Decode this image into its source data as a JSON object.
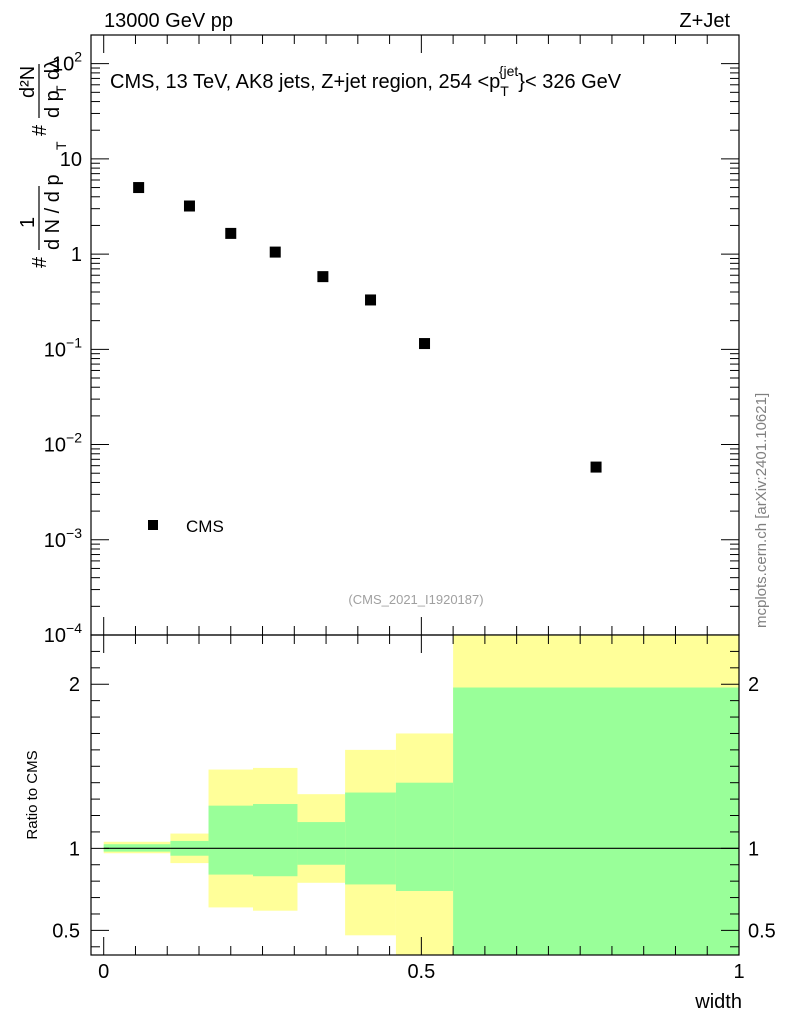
{
  "header": {
    "left_label": "13000 GeV pp",
    "right_label": "Z+Jet"
  },
  "side_label": "mcplots.cern.ch [arXiv:2401.10621]",
  "watermark": "(CMS_2021_I1920187)",
  "chart_data": [
    {
      "type": "scatter",
      "panel": "main",
      "title": "CMS, 13 TeV, AK8 jets, Z+jet region, 254 <p_T^{jet}< 326 GeV",
      "title_parts": {
        "prefix": "CMS, 13 TeV, AK8 jets, Z+jet region, 254 <p",
        "sub": "T",
        "sup": "{jet",
        "suffix": "}< 326 GeV"
      },
      "ylabel": "1/dN/dp_T  d^2N/dp_T dλ",
      "ylabel_parts": {
        "frac1_num": "1",
        "frac1_den": "d N / d p",
        "frac2_num": "d²N",
        "frac2_den": "d p",
        "lambda": "dλ",
        "sub": "T",
        "hash": "#"
      },
      "yscale": "log",
      "ylim": [
        0.0001,
        200
      ],
      "ytick_labels": [
        {
          "base": "10",
          "exp": "2"
        },
        {
          "base": "10",
          "exp": ""
        },
        {
          "base": "1",
          "exp": ""
        },
        {
          "base": "10",
          "exp": "−1"
        },
        {
          "base": "10",
          "exp": "−2"
        },
        {
          "base": "10",
          "exp": "−3"
        },
        {
          "base": "10",
          "exp": "−4"
        }
      ],
      "xlim": [
        -0.02,
        1.0
      ],
      "series": [
        {
          "name": "CMS",
          "marker": "square",
          "color": "#000000",
          "x": [
            0.055,
            0.135,
            0.2,
            0.27,
            0.345,
            0.42,
            0.505,
            0.775
          ],
          "y": [
            5.0,
            3.2,
            1.65,
            1.05,
            0.58,
            0.33,
            0.115,
            0.0058
          ]
        }
      ],
      "legend": {
        "position": "bottom-left",
        "label": "CMS"
      }
    },
    {
      "type": "area",
      "panel": "ratio",
      "ylabel": "Ratio to CMS",
      "xlabel": "width",
      "ylim": [
        0.35,
        2.3
      ],
      "xlim": [
        -0.02,
        1.0
      ],
      "xticks": [
        0,
        0.5,
        1
      ],
      "xtick_labels": [
        "0",
        "0.5",
        "1"
      ],
      "yticks": [
        0.5,
        1,
        2
      ],
      "ytick_labels": [
        "0.5",
        "1",
        "2"
      ],
      "reference_line": 1,
      "bins": [
        {
          "lo": 0.0,
          "hi": 0.105,
          "yellow": [
            0.97,
            1.04
          ],
          "green": [
            0.98,
            1.025
          ]
        },
        {
          "lo": 0.105,
          "hi": 0.165,
          "yellow": [
            0.91,
            1.09
          ],
          "green": [
            0.955,
            1.045
          ]
        },
        {
          "lo": 0.165,
          "hi": 0.235,
          "yellow": [
            0.64,
            1.48
          ],
          "green": [
            0.84,
            1.26
          ]
        },
        {
          "lo": 0.235,
          "hi": 0.305,
          "yellow": [
            0.62,
            1.49
          ],
          "green": [
            0.83,
            1.27
          ]
        },
        {
          "lo": 0.305,
          "hi": 0.38,
          "yellow": [
            0.79,
            1.33
          ],
          "green": [
            0.9,
            1.16
          ]
        },
        {
          "lo": 0.38,
          "hi": 0.46,
          "yellow": [
            0.47,
            1.6
          ],
          "green": [
            0.78,
            1.34
          ]
        },
        {
          "lo": 0.46,
          "hi": 0.55,
          "yellow": [
            0.35,
            1.7
          ],
          "green": [
            0.74,
            1.4
          ]
        },
        {
          "lo": 0.55,
          "hi": 1.0,
          "yellow": [
            0.35,
            2.3
          ],
          "green": [
            0.35,
            1.98
          ]
        }
      ],
      "colors": {
        "yellow": "#ffff99",
        "green": "#99ff99"
      }
    }
  ]
}
